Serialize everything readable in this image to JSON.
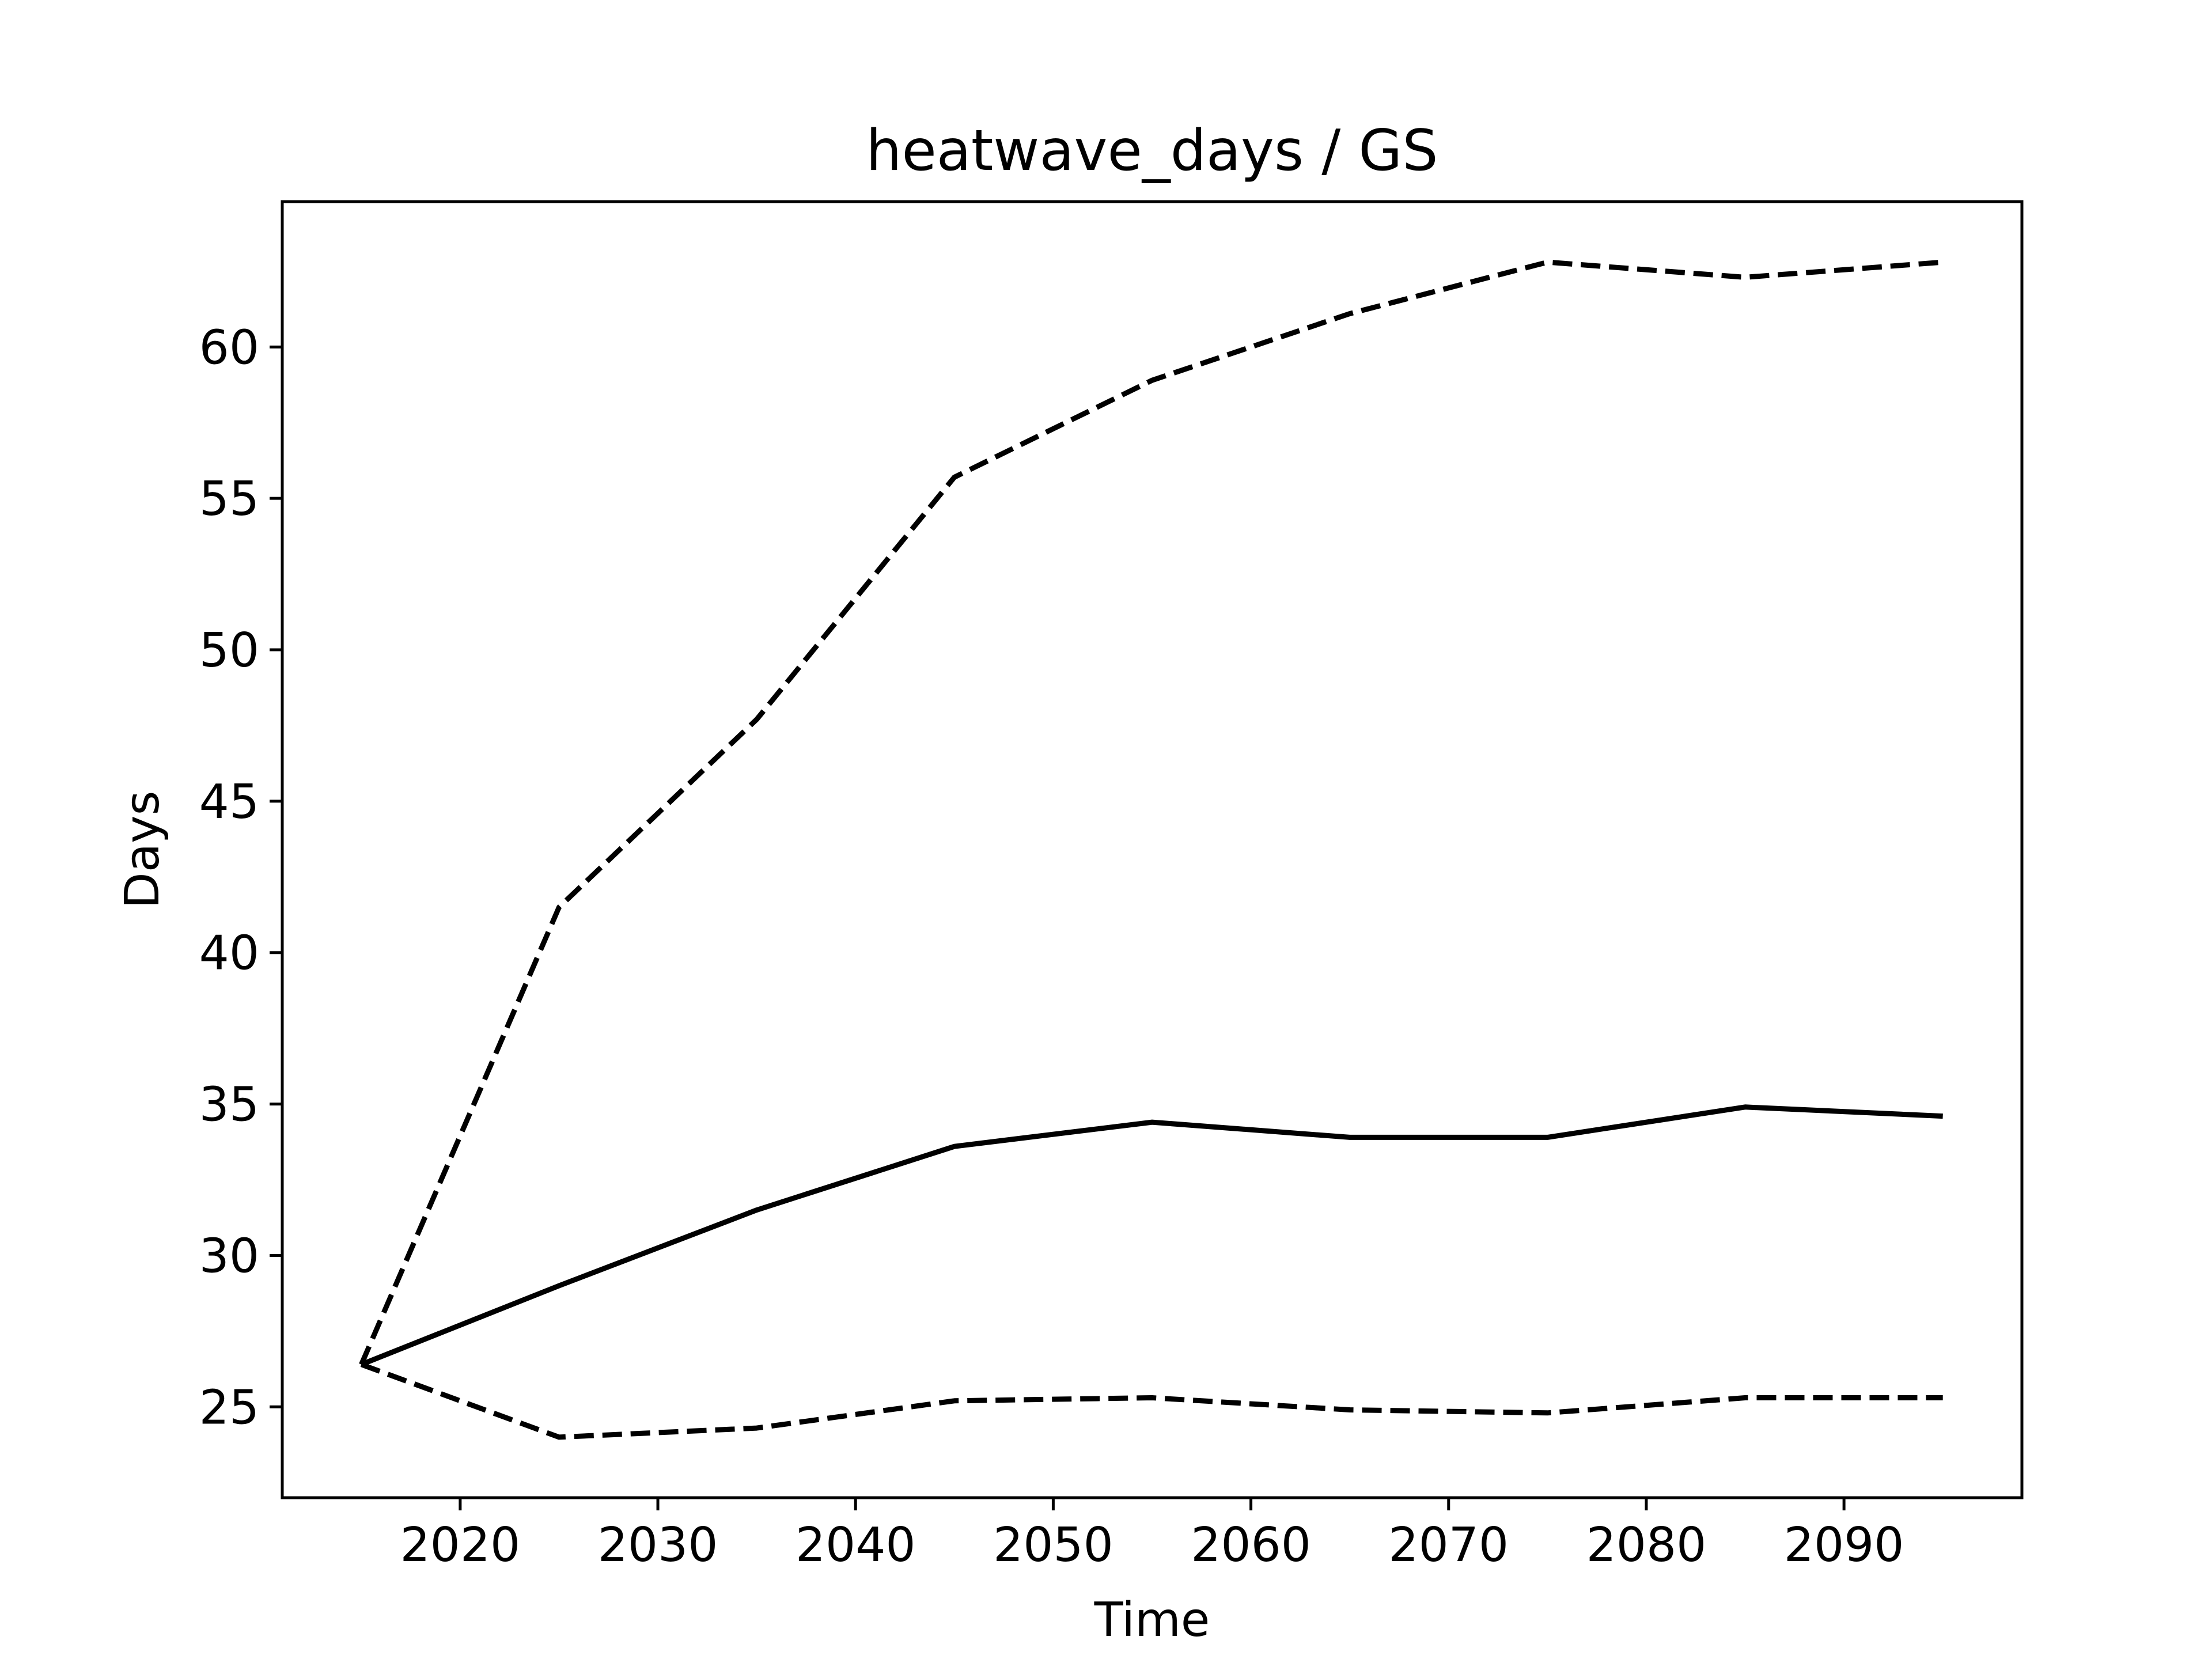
{
  "chart_data": {
    "type": "line",
    "title": "heatwave_days / GS",
    "xlabel": "Time",
    "ylabel": "Days",
    "xlim": [
      2011,
      2099
    ],
    "ylim": [
      22.0,
      64.8
    ],
    "xticks": [
      2020,
      2030,
      2040,
      2050,
      2060,
      2070,
      2080,
      2090
    ],
    "yticks": [
      25,
      30,
      35,
      40,
      45,
      50,
      55,
      60
    ],
    "grid": false,
    "legend": "none",
    "x": [
      2015,
      2025,
      2035,
      2045,
      2055,
      2065,
      2075,
      2085,
      2095
    ],
    "series": [
      {
        "style": "dashed",
        "color": "#000000",
        "values": [
          26.4,
          41.5,
          47.7,
          55.7,
          58.9,
          61.1,
          62.8,
          62.3,
          62.8
        ]
      },
      {
        "style": "solid",
        "color": "#000000",
        "values": [
          26.4,
          29.0,
          31.5,
          33.6,
          34.4,
          33.9,
          33.9,
          34.9,
          34.6
        ]
      },
      {
        "style": "dashed",
        "color": "#000000",
        "values": [
          26.4,
          24.0,
          24.3,
          25.2,
          25.3,
          24.9,
          24.8,
          25.3,
          25.3
        ]
      }
    ]
  }
}
